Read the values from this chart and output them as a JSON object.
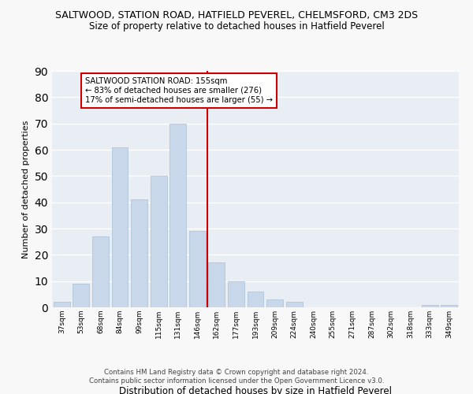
{
  "title1": "SALTWOOD, STATION ROAD, HATFIELD PEVEREL, CHELMSFORD, CM3 2DS",
  "title2": "Size of property relative to detached houses in Hatfield Peverel",
  "xlabel": "Distribution of detached houses by size in Hatfield Peverel",
  "ylabel": "Number of detached properties",
  "categories": [
    "37sqm",
    "53sqm",
    "68sqm",
    "84sqm",
    "99sqm",
    "115sqm",
    "131sqm",
    "146sqm",
    "162sqm",
    "177sqm",
    "193sqm",
    "209sqm",
    "224sqm",
    "240sqm",
    "255sqm",
    "271sqm",
    "287sqm",
    "302sqm",
    "318sqm",
    "333sqm",
    "349sqm"
  ],
  "values": [
    2,
    9,
    27,
    61,
    41,
    50,
    70,
    29,
    17,
    10,
    6,
    3,
    2,
    0,
    0,
    0,
    0,
    0,
    0,
    1,
    1
  ],
  "bar_color": "#c8d8ea",
  "bar_edge_color": "#a8c0d4",
  "vline_color": "#cc0000",
  "annotation_title": "SALTWOOD STATION ROAD: 155sqm",
  "annotation_line1": "← 83% of detached houses are smaller (276)",
  "annotation_line2": "17% of semi-detached houses are larger (55) →",
  "annotation_box_facecolor": "#ffffff",
  "annotation_box_edgecolor": "#cc0000",
  "ylim": [
    0,
    90
  ],
  "yticks": [
    0,
    10,
    20,
    30,
    40,
    50,
    60,
    70,
    80,
    90
  ],
  "fig_bg_color": "#f8f8f8",
  "ax_bg_color": "#e8eef4",
  "grid_color": "#ffffff",
  "footer1": "Contains HM Land Registry data © Crown copyright and database right 2024.",
  "footer2": "Contains public sector information licensed under the Open Government Licence v3.0."
}
